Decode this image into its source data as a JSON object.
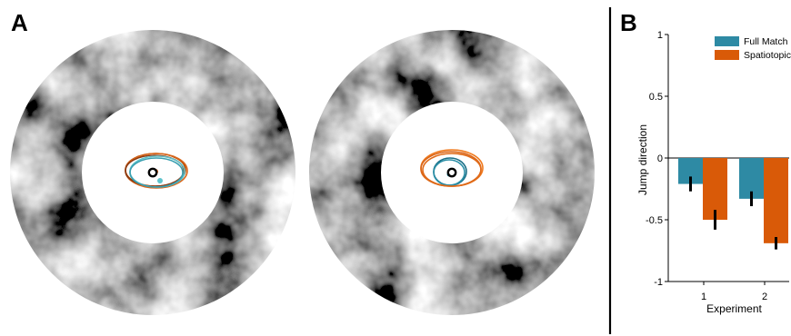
{
  "panel_a": {
    "letter": "A",
    "stimuli": [
      {
        "name": "left",
        "ellipses": [
          {
            "color": "#b34700"
          },
          {
            "color": "#d9661a"
          },
          {
            "color": "#8a3a12"
          },
          {
            "color": "#5fc3cc"
          },
          {
            "color": "#3a9fb0"
          }
        ],
        "markers": [
          {
            "color": "#d9661a"
          },
          {
            "color": "#5fc3cc"
          }
        ]
      },
      {
        "name": "right",
        "ellipses": [
          {
            "color": "#f07a1e"
          },
          {
            "color": "#d9661a"
          },
          {
            "color": "#1a6e86"
          },
          {
            "color": "#2a8ea6"
          },
          {
            "color": "#e06a18"
          }
        ],
        "markers": [
          {
            "color": "#d9661a"
          },
          {
            "color": "#2a8ea6"
          }
        ]
      }
    ]
  },
  "panel_b": {
    "letter": "B",
    "colors": {
      "full_match": "#2e8aa4",
      "spatiotopic": "#d95a08",
      "error": "#000000"
    }
  },
  "chart_data": {
    "type": "bar",
    "xlabel": "Experiment",
    "ylabel": "Jump direction",
    "categories": [
      "1",
      "2"
    ],
    "ylim": [
      -1,
      1
    ],
    "yticks": [
      "1",
      "0.5",
      "0",
      "-0.5",
      "-1"
    ],
    "yticks_values": [
      1,
      0.5,
      0,
      -0.5,
      -1
    ],
    "legend_position": "top-right",
    "series": [
      {
        "name": "Full Match",
        "color": "#2e8aa4",
        "values": [
          -0.21,
          -0.33
        ],
        "errors": [
          0.06,
          0.06
        ]
      },
      {
        "name": "Spatiotopic",
        "color": "#d95a08",
        "values": [
          -0.5,
          -0.69
        ],
        "errors": [
          0.08,
          0.05
        ]
      }
    ],
    "grid": false
  }
}
